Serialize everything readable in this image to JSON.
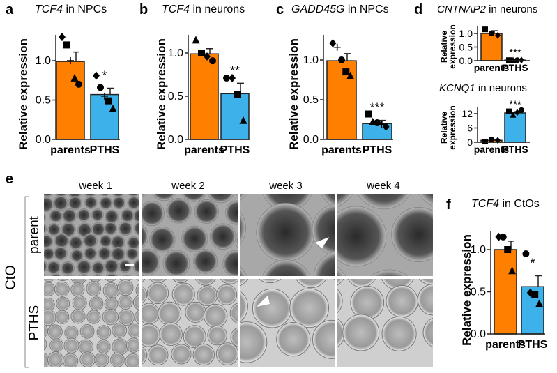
{
  "colors": {
    "parents": "#ff8000",
    "PTHS": "#3db1ea",
    "outline": "#222222"
  },
  "panels": {
    "a": "a",
    "b": "b",
    "c": "c",
    "d": "d",
    "e": "e",
    "f": "f"
  },
  "panel_e": {
    "columns": [
      "week 1",
      "week 2",
      "week 3",
      "week 4"
    ],
    "rows": [
      "parent",
      "PTHS"
    ],
    "group_label": "CtO",
    "annotations": "white arrowheads in week 3 images"
  },
  "chart_data": [
    {
      "id": "a",
      "type": "bar",
      "title_gene": "TCF4",
      "title_rest": " in NPCs",
      "ylabel": "Relative expression",
      "categories": [
        "parents",
        "PTHS"
      ],
      "yticks": [
        "0.0",
        "0.5",
        "1.0"
      ],
      "ytick_values": [
        0,
        0.5,
        1.0
      ],
      "ylim": [
        0,
        1.3
      ],
      "bars": [
        {
          "mean": 0.99,
          "sem": 0.12,
          "points": [
            [
              "diamond",
              1.3
            ],
            [
              "square",
              1.2
            ],
            [
              "plus",
              1.0
            ],
            [
              "triangle",
              0.78
            ],
            [
              "circle",
              0.7
            ]
          ]
        },
        {
          "mean": 0.57,
          "sem": 0.08,
          "sig": "*",
          "points": [
            [
              "diamond",
              0.81
            ],
            [
              "circle",
              0.66
            ],
            [
              "plus",
              0.55
            ],
            [
              "square",
              0.49
            ],
            [
              "triangle",
              0.39
            ]
          ]
        }
      ]
    },
    {
      "id": "b",
      "type": "bar",
      "title_gene": "TCF4",
      "title_rest": " in neurons",
      "ylabel": "Relative expression",
      "categories": [
        "parents",
        "PTHS"
      ],
      "yticks": [
        "0.0",
        "0.5",
        "1.0"
      ],
      "ytick_values": [
        0,
        0.5,
        1.0
      ],
      "ylim": [
        0,
        1.2
      ],
      "bars": [
        {
          "mean": 0.99,
          "sem": 0.06,
          "points": [
            [
              "triangle",
              1.15
            ],
            [
              "square",
              1.0
            ],
            [
              "diamond",
              0.96
            ],
            [
              "circle",
              0.91
            ]
          ]
        },
        {
          "mean": 0.53,
          "sem": 0.12,
          "sig": "**",
          "points": [
            [
              "circle",
              0.71
            ],
            [
              "diamond",
              0.71
            ],
            [
              "square",
              0.52
            ],
            [
              "triangle",
              0.22
            ]
          ]
        }
      ]
    },
    {
      "id": "c",
      "type": "bar",
      "title_gene": "GADD45G",
      "title_rest": " in NPCs",
      "ylabel": "Relative expression",
      "categories": [
        "parents",
        "PTHS"
      ],
      "yticks": [
        "0.0",
        "0.5",
        "1.0"
      ],
      "ytick_values": [
        0,
        0.5,
        1.0
      ],
      "ylim": [
        0,
        1.3
      ],
      "bars": [
        {
          "mean": 0.99,
          "sem": 0.09,
          "points": [
            [
              "diamond",
              1.21
            ],
            [
              "plus",
              1.16
            ],
            [
              "circle",
              1.0
            ],
            [
              "square",
              0.85
            ],
            [
              "triangle",
              0.8
            ]
          ]
        },
        {
          "mean": 0.2,
          "sem": 0.04,
          "sig": "***",
          "points": [
            [
              "square",
              0.32
            ],
            [
              "triangle",
              0.22
            ],
            [
              "circle",
              0.21
            ],
            [
              "plus",
              0.19
            ],
            [
              "diamond",
              0.16
            ]
          ]
        }
      ]
    },
    {
      "id": "d1",
      "type": "bar",
      "title_gene": "CNTNAP2",
      "title_rest": " in neurons",
      "ylabel": "Relative expression",
      "categories": [
        "parents",
        "PTHS"
      ],
      "yticks": [
        "0.0",
        "0.5",
        "1.0"
      ],
      "ytick_values": [
        0,
        0.5,
        1.0
      ],
      "ylim": [
        0,
        1.2
      ],
      "bars": [
        {
          "mean": 1.0,
          "sem": 0.1,
          "points": [
            [
              "square",
              1.15
            ],
            [
              "circle",
              1.0
            ],
            [
              "diamond",
              0.93
            ]
          ]
        },
        {
          "mean": 0.02,
          "sem": 0.01,
          "sig": "***",
          "points": [
            [
              "square",
              0.02
            ],
            [
              "triangle",
              0.02
            ],
            [
              "circle",
              0.02
            ],
            [
              "diamond",
              0.02
            ]
          ]
        }
      ]
    },
    {
      "id": "d2",
      "type": "bar",
      "title_gene": "KCNQ1",
      "title_rest": " in neurons",
      "ylabel": "Relative expression",
      "categories": [
        "parents",
        "PTHS"
      ],
      "yticks": [
        "0",
        "6",
        "12"
      ],
      "ytick_values": [
        0,
        6,
        12
      ],
      "ylim": [
        0,
        15
      ],
      "bars": [
        {
          "mean": 0.8,
          "sem": 0.3,
          "points": [
            [
              "square",
              0.3
            ],
            [
              "circle",
              1.2
            ],
            [
              "diamond",
              0.8
            ]
          ]
        },
        {
          "mean": 12.3,
          "sem": 0.5,
          "sig": "***",
          "points": [
            [
              "square",
              13
            ],
            [
              "triangle",
              11.5
            ],
            [
              "diamond",
              12.5
            ],
            [
              "circle",
              13.5
            ]
          ]
        }
      ]
    },
    {
      "id": "f",
      "type": "bar",
      "title_gene": "TCF4",
      "title_rest": " in CtOs",
      "ylabel": "Relative expression",
      "categories": [
        "parents",
        "PTHS"
      ],
      "yticks": [
        "0.0",
        "0.5",
        "1.0"
      ],
      "ytick_values": [
        0,
        0.5,
        1.0
      ],
      "ylim": [
        0,
        1.2
      ],
      "bars": [
        {
          "mean": 1.0,
          "sem": 0.1,
          "points": [
            [
              "diamond",
              1.15
            ],
            [
              "circle",
              1.15
            ],
            [
              "square",
              1.0
            ],
            [
              "triangle",
              0.75
            ]
          ]
        },
        {
          "mean": 0.56,
          "sem": 0.13,
          "sig": "*",
          "points": [
            [
              "circle",
              0.95
            ],
            [
              "diamond",
              0.49
            ],
            [
              "square",
              0.47
            ],
            [
              "triangle",
              0.36
            ]
          ]
        }
      ]
    }
  ]
}
